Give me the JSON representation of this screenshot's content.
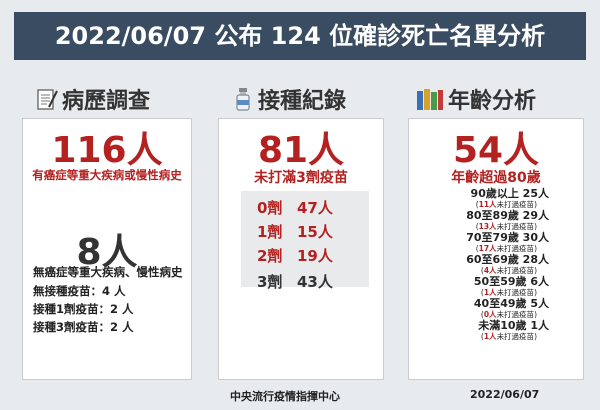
{
  "title": "2022/06/07 公布 124 位確診死亡名單分析",
  "history": {
    "heading": "病歷調查",
    "with_condition_count": "116人",
    "with_condition_label": "有癌症等重大疾病或慢性病史",
    "without_condition_count": "8人",
    "without_condition_label": "無癌症等重大疾病、慢性病史",
    "lines": [
      "無接種疫苗：4 人",
      "接種1劑疫苗：2 人",
      "接種3劑疫苗：2 人"
    ]
  },
  "vaccination": {
    "heading": "接種紀錄",
    "count": "81人",
    "label": "未打滿3劑疫苗",
    "doses": [
      {
        "dose": "0劑",
        "count": "47人"
      },
      {
        "dose": "1劑",
        "count": "15人"
      },
      {
        "dose": "2劑",
        "count": "19人"
      },
      {
        "dose": "3劑",
        "count": "43人"
      }
    ]
  },
  "age": {
    "heading": "年齡分析",
    "count": "54人",
    "label": "年齡超過80歲",
    "groups": [
      {
        "label": "90歲以上  25人",
        "unvaccinated": "11人",
        "note": "未打過疫苗"
      },
      {
        "label": "80至89歲  29人",
        "unvaccinated": "13人",
        "note": "未打過疫苗"
      },
      {
        "label": "70至79歲  30人",
        "unvaccinated": "17人",
        "note": "未打過疫苗"
      },
      {
        "label": "60至69歲  28人",
        "unvaccinated": "4人",
        "note": "未打過疫苗"
      },
      {
        "label": "50至59歲    6人",
        "unvaccinated": "1人",
        "note": "未打過疫苗"
      },
      {
        "label": "40至49歲    5人",
        "unvaccinated": "0人",
        "note": "未打過疫苗"
      },
      {
        "label": "未滿10歲    1人",
        "unvaccinated": "1人",
        "note": "未打過疫苗"
      }
    ]
  },
  "footer": {
    "org": "中央流行疫情指揮中心",
    "date": "2022/06/07"
  },
  "colors": {
    "banner": "#3a4c61",
    "accent_red": "#b32221",
    "background": "#e7ebee"
  },
  "icons": {
    "history": "document-pen-icon",
    "vaccination": "vaccine-bottle-icon",
    "age": "books-icon"
  }
}
